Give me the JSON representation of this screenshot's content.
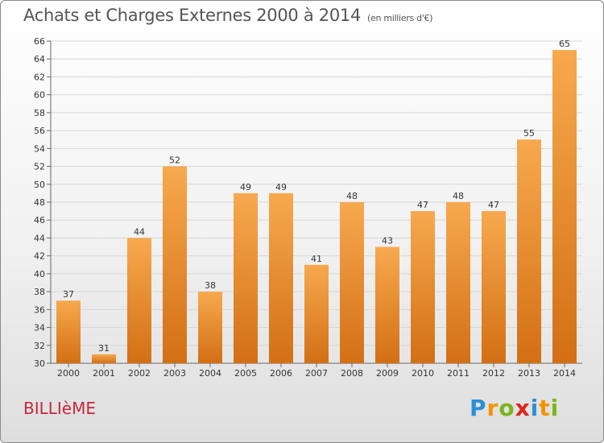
{
  "title": "Achats et Charges Externes 2000 à 2014",
  "unit_note": "(en milliers d'€)",
  "commune": "BILLIèME",
  "logo": {
    "letters": [
      {
        "char": "P",
        "color": "#2a8fd6"
      },
      {
        "char": "r",
        "color": "#f29400"
      },
      {
        "char": "o",
        "color": "#7ab51d"
      },
      {
        "char": "x",
        "color": "#e2231a"
      },
      {
        "char": "i",
        "color": "#2a8fd6"
      },
      {
        "char": "t",
        "color": "#f29400"
      },
      {
        "char": "i",
        "color": "#7ab51d"
      }
    ]
  },
  "colors": {
    "bar_light": "#f7a94f",
    "bar_dark": "#d36f14",
    "grid": "#d6d6d6",
    "axis": "#666666"
  },
  "chart_data": {
    "type": "bar",
    "title": "Achats et Charges Externes 2000 à 2014",
    "subtitle": "(en milliers d'€)",
    "categories": [
      "2000",
      "2001",
      "2002",
      "2003",
      "2004",
      "2005",
      "2006",
      "2007",
      "2008",
      "2009",
      "2010",
      "2011",
      "2012",
      "2013",
      "2014"
    ],
    "values": [
      37,
      31,
      44,
      52,
      38,
      49,
      49,
      41,
      48,
      43,
      47,
      48,
      47,
      55,
      65
    ],
    "ylim": [
      30,
      66
    ],
    "yticks": [
      30,
      32,
      34,
      36,
      38,
      40,
      42,
      44,
      46,
      48,
      50,
      52,
      54,
      56,
      58,
      60,
      62,
      64,
      66
    ],
    "grid": true,
    "data_labels": true
  }
}
